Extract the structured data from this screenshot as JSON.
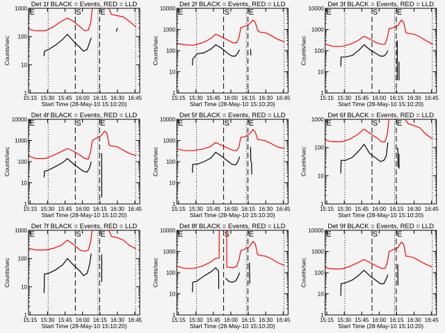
{
  "chart_data": [
    {
      "type": "line",
      "title": "Det 1f BLACK = Events, RED = LLD",
      "ylim": [
        1,
        1000
      ],
      "red": [
        180,
        160,
        160,
        220,
        350,
        450,
        350,
        220,
        160,
        170,
        300,
        1100,
        1300,
        2000,
        3000,
        2500,
        900,
        600,
        550,
        500,
        350,
        220
      ],
      "black": [
        20,
        30,
        35,
        50,
        80,
        120,
        70,
        40,
        30,
        35,
        60,
        90
      ],
      "black_fragments": [
        [
          [
            89,
            150
          ],
          [
            90,
            200
          ]
        ]
      ],
      "red_spike": null,
      "black_break": null
    },
    {
      "type": "line",
      "title": "Det 2f BLACK = Events, RED = LLD",
      "ylim": [
        1,
        10000
      ],
      "red": [
        220,
        190,
        180,
        230,
        350,
        600,
        450,
        300,
        230,
        240,
        400,
        1200,
        1400,
        1800,
        2800,
        2200,
        900,
        750,
        700,
        500,
        350,
        260
      ],
      "black": [
        20,
        40,
        70,
        80,
        120,
        190,
        130,
        70,
        55,
        55,
        80,
        110
      ],
      "black_fragments": [
        [
          [
            77,
            120
          ],
          [
            77.2,
            60
          ]
        ]
      ],
      "red_spike": null,
      "black_break": null
    },
    {
      "type": "line",
      "title": "Det 3f BLACK = Events, RED = LLD",
      "ylim": [
        1,
        10000
      ],
      "red": [
        200,
        160,
        160,
        200,
        300,
        480,
        350,
        230,
        200,
        200,
        400,
        1100,
        1200,
        1500,
        2800,
        2200,
        700,
        650,
        600,
        450,
        300,
        200
      ],
      "black": [
        18,
        50,
        50,
        60,
        110,
        190,
        110,
        70,
        55,
        55,
        70,
        100
      ],
      "black_fragments": [
        [
          [
            75.5,
            300
          ],
          [
            75.6,
            4
          ]
        ],
        [
          [
            77,
            30
          ],
          [
            77.1,
            4
          ]
        ]
      ],
      "red_spike": null,
      "black_break": null
    },
    {
      "type": "line",
      "title": "Det 4f BLACK = Events, RED = LLD",
      "ylim": [
        1,
        10000
      ],
      "red": [
        180,
        140,
        140,
        200,
        300,
        420,
        320,
        200,
        140,
        130,
        300,
        1000,
        1300,
        1700,
        2800,
        2200,
        600,
        550,
        500,
        350,
        250,
        190
      ],
      "black": [
        18,
        35,
        40,
        60,
        90,
        140,
        80,
        45,
        35,
        32,
        50,
        100
      ],
      "black_fragments": [
        [
          [
            76.5,
            250
          ],
          [
            76.6,
            2
          ]
        ]
      ],
      "red_spike": null,
      "black_break": null
    },
    {
      "type": "line",
      "title": "Det 5f BLACK = Events, RED = LLD",
      "ylim": [
        1,
        10000
      ],
      "red": [
        400,
        330,
        340,
        380,
        500,
        800,
        600,
        420,
        340,
        330,
        500,
        1400,
        1500,
        2000,
        3300,
        2500,
        1100,
        1100,
        950,
        700,
        500,
        420
      ],
      "black": [
        30,
        75,
        75,
        100,
        150,
        280,
        180,
        100,
        75,
        70,
        100,
        170
      ],
      "black_fragments": [
        [
          [
            77,
            500
          ],
          [
            77.2,
            100
          ]
        ],
        [
          [
            77.8,
            100
          ],
          [
            78,
            25
          ]
        ]
      ],
      "red_spike": null,
      "black_break": null
    },
    {
      "type": "line",
      "title": "Det 6f BLACK = Events, RED = LLD",
      "ylim": [
        1,
        1000
      ],
      "red": [
        180,
        160,
        160,
        200,
        300,
        450,
        320,
        220,
        160,
        160,
        300,
        1100,
        1300,
        2000,
        3000,
        2500,
        900,
        700,
        600,
        500,
        300,
        200
      ],
      "black": [
        12,
        35,
        35,
        45,
        80,
        130,
        60,
        40,
        32,
        35,
        50,
        150
      ],
      "black_fragments": [
        [
          [
            76,
            100
          ],
          [
            76.2,
            20
          ]
        ],
        [
          [
            77,
            60
          ],
          [
            77.2,
            18
          ]
        ]
      ],
      "red_spike": null,
      "black_break": null
    },
    {
      "type": "line",
      "title": "Det 7f BLACK = Events, RED = LLD",
      "ylim": [
        1,
        1000
      ],
      "red": [
        230,
        200,
        200,
        230,
        300,
        450,
        320,
        200,
        180,
        200,
        400,
        1100,
        1300,
        2000,
        3000,
        2500,
        900,
        600,
        550,
        450,
        300,
        220
      ],
      "black": [
        6,
        28,
        30,
        40,
        60,
        100,
        60,
        35,
        25,
        30,
        60,
        150
      ],
      "black_fragments": [
        [
          [
            76.5,
            140
          ],
          [
            76.6,
            15
          ]
        ]
      ],
      "red_spike": null,
      "black_break": null
    },
    {
      "type": "line",
      "title": "Det 8f BLACK = Events, RED = LLD",
      "ylim": [
        1,
        10000
      ],
      "red": [
        200,
        160,
        160,
        200,
        300,
        480,
        350,
        180,
        170,
        200,
        400,
        1100,
        1300,
        1700,
        3000,
        2300,
        700,
        650,
        600,
        450,
        300,
        220
      ],
      "black": [
        12,
        35,
        40,
        70,
        110,
        170,
        110,
        40,
        35,
        40,
        60,
        100
      ],
      "black_fragments": [
        [
          [
            76,
            300
          ],
          [
            76.2,
            30
          ]
        ]
      ],
      "red_spike": [
        50,
        56.5,
        20000
      ],
      "black_break": [
        49.5,
        55.5
      ]
    },
    {
      "type": "line",
      "title": "Det 9f BLACK = Events, RED = LLD",
      "ylim": [
        1,
        10000
      ],
      "red": [
        170,
        150,
        150,
        200,
        300,
        420,
        300,
        200,
        160,
        160,
        300,
        1000,
        1200,
        1500,
        2800,
        2200,
        600,
        600,
        500,
        350,
        250,
        180
      ],
      "black": [
        8,
        30,
        33,
        45,
        80,
        130,
        70,
        40,
        30,
        30,
        50,
        80
      ],
      "black_fragments": [
        [
          [
            76,
            250
          ],
          [
            76.2,
            25
          ]
        ]
      ],
      "red_spike": null,
      "black_break": null
    }
  ],
  "shared": {
    "red_times_min_after_15h": [
      14,
      20,
      28,
      35,
      42,
      47,
      52,
      58,
      62,
      65,
      67,
      68.5,
      72,
      76,
      79,
      81,
      83,
      85,
      90,
      95,
      100,
      106
    ],
    "black_times_min_after_15h": [
      27,
      27.3,
      31,
      37,
      43,
      47,
      52,
      58,
      61,
      64,
      66,
      67.5
    ],
    "xlim_min_after_15h": [
      13.6,
      109.2
    ],
    "xticks": [
      {
        "t": 15,
        "label": "15:15"
      },
      {
        "t": 30,
        "label": "15:30"
      },
      {
        "t": 45,
        "label": "15:45"
      },
      {
        "t": 60,
        "label": "16:00"
      },
      {
        "t": 75,
        "label": "16:15"
      },
      {
        "t": 90,
        "label": "16:30"
      },
      {
        "t": 105,
        "label": "16:45"
      }
    ],
    "xlabel": "Start Time (28-May-10 15:10:20)",
    "ylabel": "Counts/sec",
    "dotted_lines": [
      30.5,
      73.3,
      105.6
    ],
    "dashed_lines": [
      53.8,
      74.7
    ],
    "markers": [
      {
        "t": 14,
        "label": "E"
      },
      {
        "t": 53.8,
        "label": "S"
      },
      {
        "t": 74.7,
        "label": "E"
      }
    ],
    "series": [
      {
        "name": "Events",
        "color": "#000000"
      },
      {
        "name": "LLD",
        "color": "#ff0000"
      }
    ]
  }
}
